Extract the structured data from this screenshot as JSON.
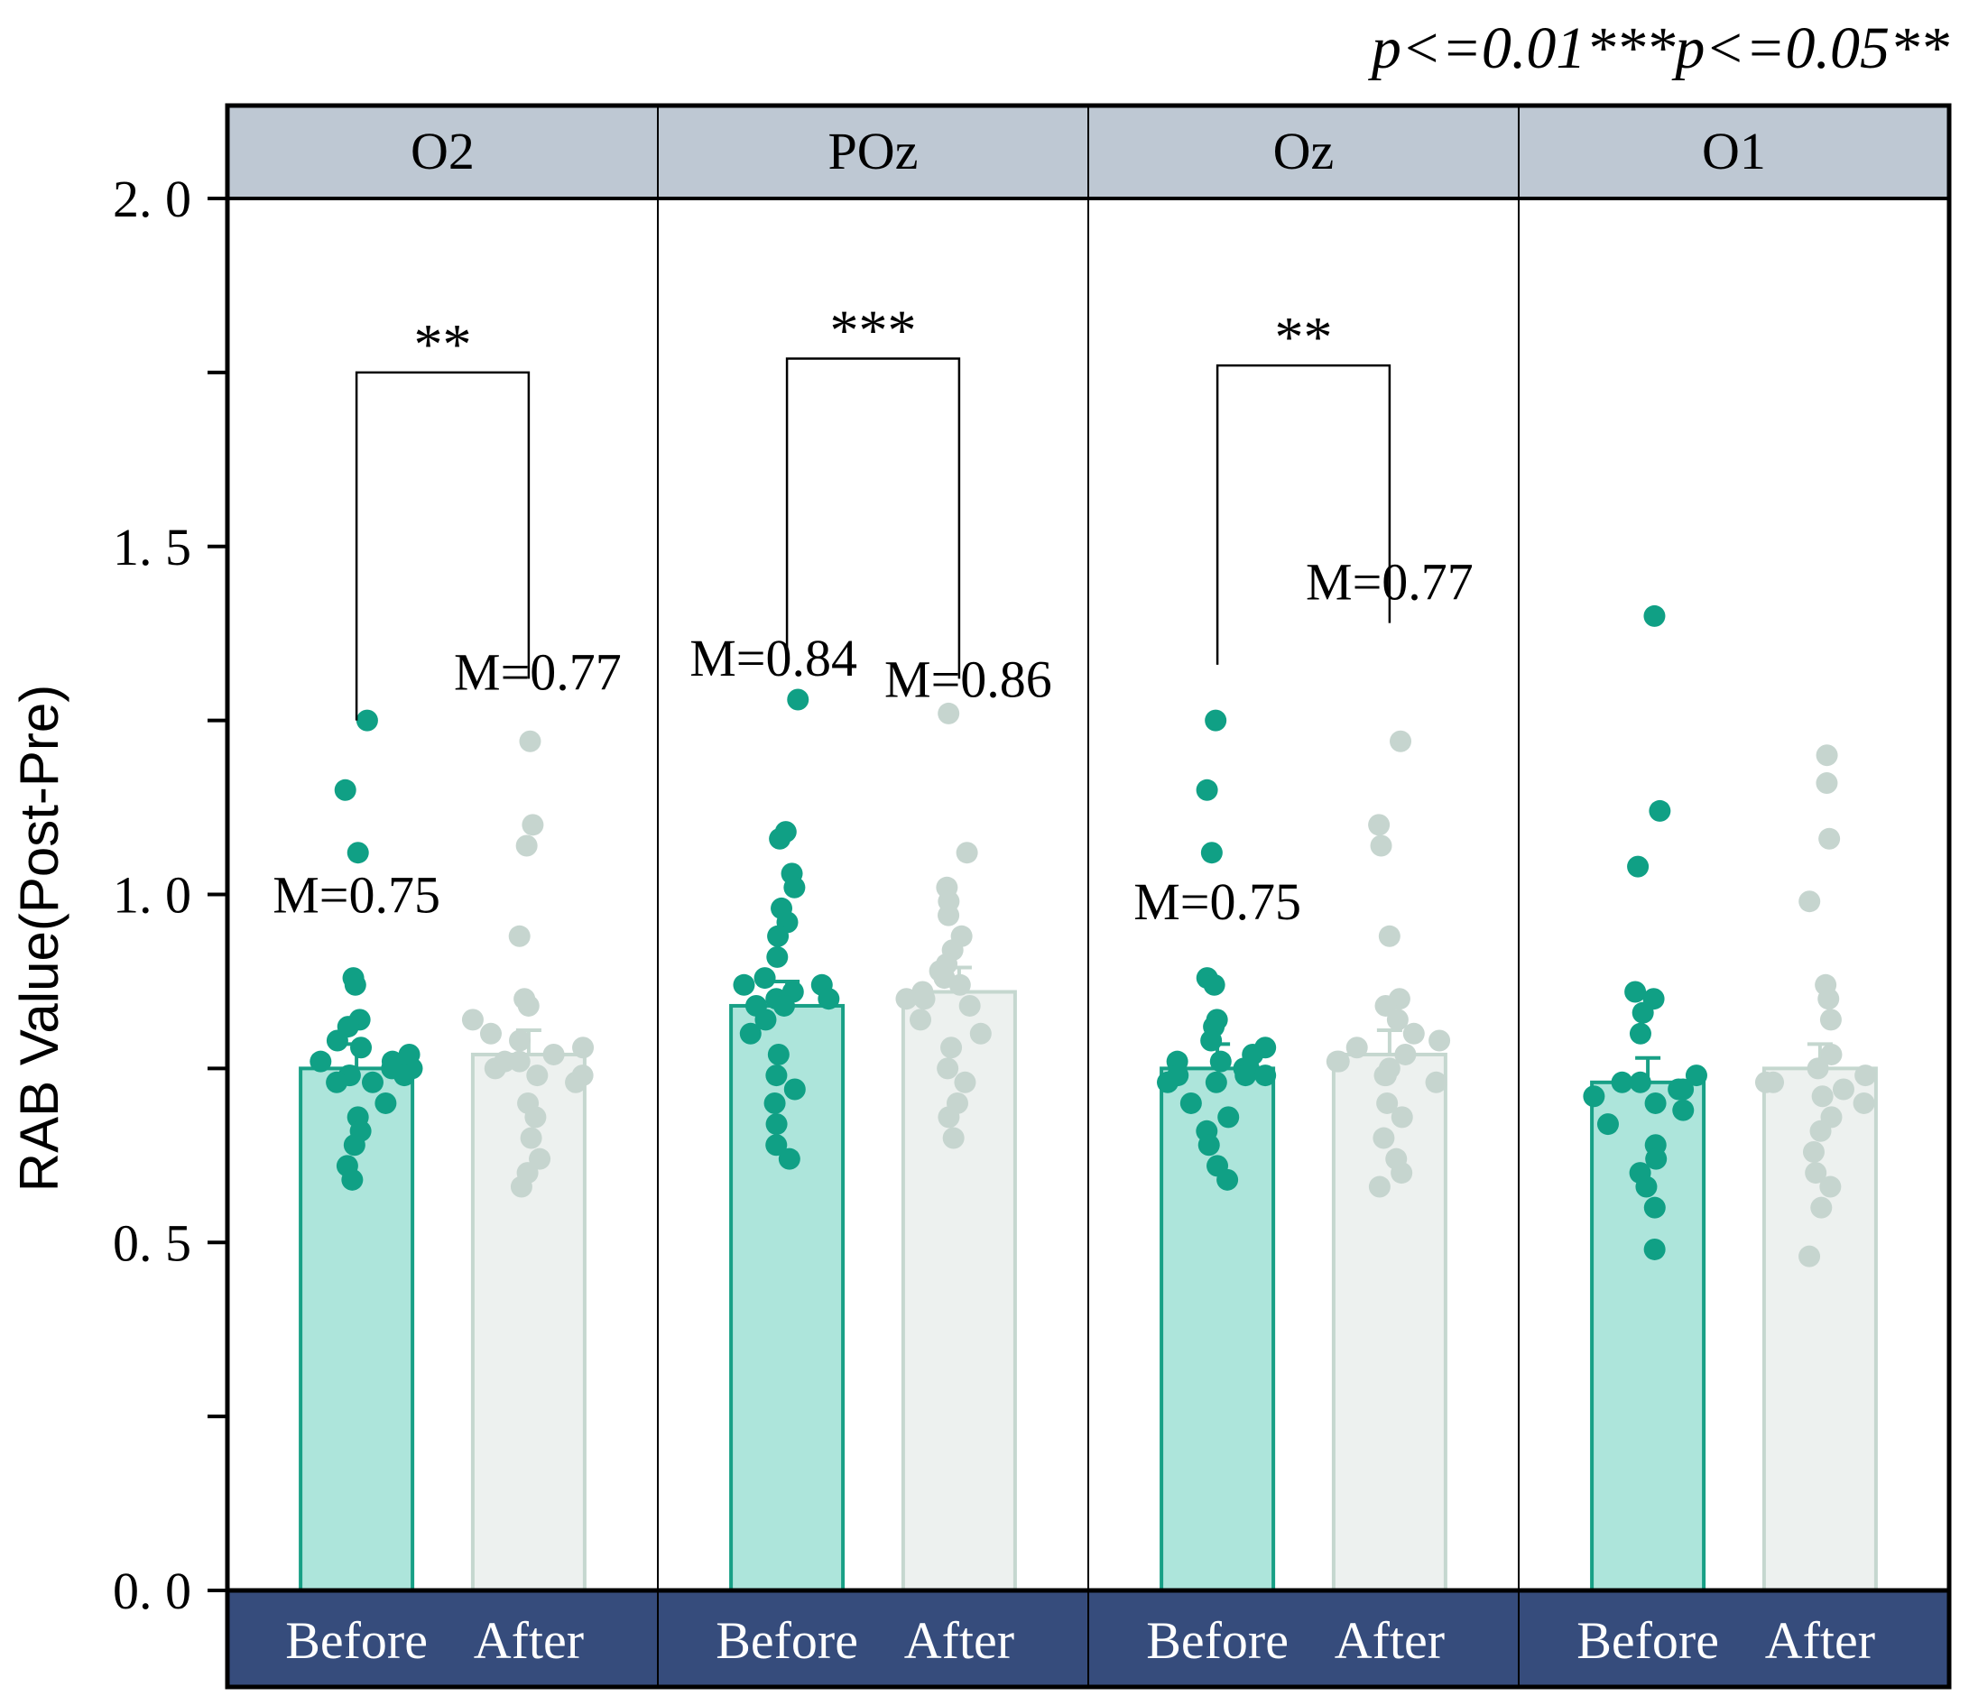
{
  "chart_data": {
    "type": "bar",
    "ylabel": "RAB Value(Post-Pre)",
    "ylim": [
      0,
      2.0
    ],
    "yticks": [
      "0. 0",
      "0. 5",
      "1. 0",
      "1. 5",
      "2. 0"
    ],
    "ytick_values": [
      0,
      0.5,
      1.0,
      1.5,
      2.0
    ],
    "significance_legend": "p<=0.01***p<=0.05**",
    "colors": {
      "before_fill": "#ade5db",
      "before_edge": "#18a086",
      "before_dot": "#10a085",
      "after_fill": "#edf1ef",
      "after_edge": "#c5d7cf",
      "after_dot": "#c6d5cf",
      "strip_header": "#bec8d3",
      "strip_footer": "#364c7c",
      "footer_text": "#ffffff"
    },
    "panels": [
      {
        "name": "O2",
        "bars": [
          {
            "label": "Before",
            "value": 0.75,
            "annotation": "M=0.75",
            "points": [
              1.25,
              1.15,
              1.06,
              0.88,
              0.87,
              0.82,
              0.81,
              0.79,
              0.78,
              0.77,
              0.76,
              0.76,
              0.75,
              0.75,
              0.74,
              0.74,
              0.74,
              0.73,
              0.73,
              0.7,
              0.68,
              0.66,
              0.64,
              0.61,
              0.59
            ]
          },
          {
            "label": "After",
            "value": 0.77,
            "annotation": "M=0.77",
            "points": [
              1.22,
              1.1,
              1.07,
              0.94,
              0.85,
              0.84,
              0.82,
              0.8,
              0.79,
              0.78,
              0.77,
              0.76,
              0.76,
              0.75,
              0.74,
              0.74,
              0.73,
              0.7,
              0.68,
              0.65,
              0.62,
              0.6,
              0.58
            ]
          }
        ],
        "significance": "**"
      },
      {
        "name": "POz",
        "bars": [
          {
            "label": "Before",
            "value": 0.84,
            "annotation": "M=0.84",
            "points": [
              1.28,
              1.09,
              1.08,
              1.03,
              1.01,
              0.98,
              0.96,
              0.94,
              0.91,
              0.88,
              0.87,
              0.87,
              0.86,
              0.85,
              0.85,
              0.84,
              0.84,
              0.82,
              0.8,
              0.77,
              0.74,
              0.72,
              0.7,
              0.67,
              0.64,
              0.62
            ]
          },
          {
            "label": "After",
            "value": 0.86,
            "annotation": "M=0.86",
            "points": [
              1.26,
              1.06,
              1.01,
              0.99,
              0.97,
              0.94,
              0.92,
              0.9,
              0.89,
              0.88,
              0.87,
              0.86,
              0.85,
              0.85,
              0.84,
              0.82,
              0.8,
              0.78,
              0.75,
              0.73,
              0.7,
              0.68,
              0.65
            ]
          }
        ],
        "significance": "***"
      },
      {
        "name": "Oz",
        "bars": [
          {
            "label": "Before",
            "value": 0.75,
            "annotation": "M=0.75",
            "points": [
              1.25,
              1.15,
              1.06,
              0.88,
              0.87,
              0.82,
              0.81,
              0.79,
              0.78,
              0.77,
              0.76,
              0.76,
              0.75,
              0.75,
              0.74,
              0.74,
              0.74,
              0.73,
              0.73,
              0.7,
              0.68,
              0.66,
              0.64,
              0.61,
              0.59
            ]
          },
          {
            "label": "After",
            "value": 0.77,
            "annotation": "M=0.77",
            "points": [
              1.22,
              1.1,
              1.07,
              0.94,
              0.85,
              0.84,
              0.82,
              0.8,
              0.79,
              0.78,
              0.77,
              0.76,
              0.76,
              0.75,
              0.74,
              0.74,
              0.73,
              0.7,
              0.68,
              0.65,
              0.62,
              0.6,
              0.58
            ]
          }
        ],
        "significance": "**"
      },
      {
        "name": "O1",
        "bars": [
          {
            "label": "Before",
            "value": 0.73,
            "annotation": "",
            "points": [
              1.4,
              1.12,
              1.04,
              0.86,
              0.85,
              0.83,
              0.8,
              0.74,
              0.73,
              0.73,
              0.72,
              0.72,
              0.71,
              0.7,
              0.69,
              0.67,
              0.64,
              0.62,
              0.6,
              0.58,
              0.55,
              0.49
            ]
          },
          {
            "label": "After",
            "value": 0.75,
            "annotation": "",
            "points": [
              1.2,
              1.16,
              1.08,
              0.99,
              0.87,
              0.85,
              0.82,
              0.77,
              0.75,
              0.74,
              0.73,
              0.73,
              0.72,
              0.71,
              0.7,
              0.68,
              0.66,
              0.63,
              0.6,
              0.58,
              0.55,
              0.48
            ]
          }
        ],
        "significance": ""
      }
    ]
  }
}
